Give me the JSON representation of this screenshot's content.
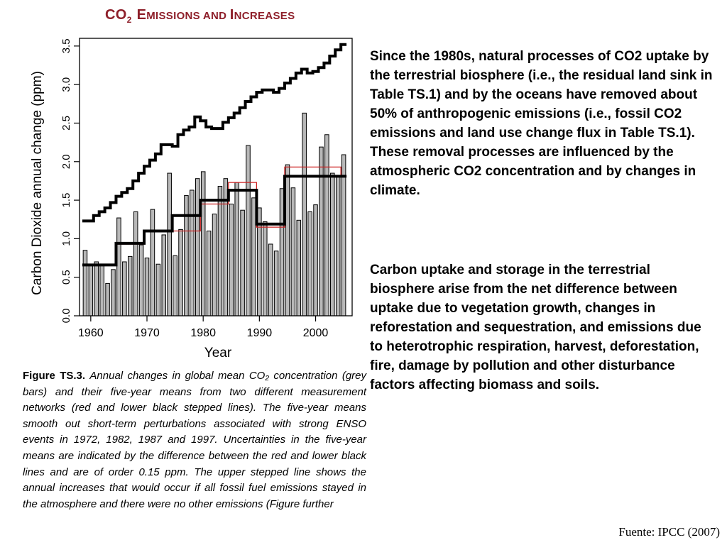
{
  "title": {
    "prefix": "CO",
    "sub": "2",
    "e_big": "E",
    "e_rest": "MISSIONS AND ",
    "i_big": "I",
    "i_rest": "NCREASES"
  },
  "chart_data": {
    "type": "bar",
    "title": "CO2 Emissions and Increases",
    "xlabel": "Year",
    "ylabel": "Carbon Dioxide annual change (ppm)",
    "xlim": [
      1958,
      2006.5
    ],
    "ylim": [
      0,
      3.6
    ],
    "xticks": [
      "1960",
      "1970",
      "1980",
      "1990",
      "2000"
    ],
    "yticks": [
      "0.0",
      "0.5",
      "1.0",
      "1.5",
      "2.0",
      "2.5",
      "3.0",
      "3.5"
    ],
    "bar_color": "#b8b8b8",
    "years": [
      1959,
      1960,
      1961,
      1962,
      1963,
      1964,
      1965,
      1966,
      1967,
      1968,
      1969,
      1970,
      1971,
      1972,
      1973,
      1974,
      1975,
      1976,
      1977,
      1978,
      1979,
      1980,
      1981,
      1982,
      1983,
      1984,
      1985,
      1986,
      1987,
      1988,
      1989,
      1990,
      1991,
      1992,
      1993,
      1994,
      1995,
      1996,
      1997,
      1998,
      1999,
      2000,
      2001,
      2002,
      2003,
      2004,
      2005
    ],
    "annual_change": [
      0.85,
      0.67,
      0.7,
      0.67,
      0.42,
      0.6,
      1.27,
      0.7,
      0.77,
      1.35,
      0.92,
      0.75,
      1.38,
      0.67,
      1.05,
      1.85,
      0.78,
      1.12,
      1.56,
      1.63,
      1.78,
      1.87,
      1.1,
      1.32,
      1.68,
      1.78,
      1.45,
      1.73,
      1.37,
      2.21,
      1.53,
      1.4,
      1.22,
      0.93,
      0.84,
      1.65,
      1.96,
      1.66,
      1.24,
      2.63,
      1.35,
      1.44,
      2.19,
      2.35,
      1.85,
      1.82,
      2.09
    ],
    "series": [
      {
        "name": "Fossil fuel emissions (upper stepped line)",
        "color": "#000000",
        "x": [
          1959,
          1960,
          1961,
          1962,
          1963,
          1964,
          1965,
          1966,
          1967,
          1968,
          1969,
          1970,
          1971,
          1972,
          1973,
          1974,
          1975,
          1976,
          1977,
          1978,
          1979,
          1980,
          1981,
          1982,
          1983,
          1984,
          1985,
          1986,
          1987,
          1988,
          1989,
          1990,
          1991,
          1992,
          1993,
          1994,
          1995,
          1996,
          1997,
          1998,
          1999,
          2000,
          2001,
          2002,
          2003,
          2004,
          2005
        ],
        "values": [
          1.23,
          1.23,
          1.3,
          1.35,
          1.4,
          1.47,
          1.55,
          1.6,
          1.65,
          1.75,
          1.85,
          1.94,
          2.02,
          2.1,
          2.22,
          2.22,
          2.2,
          2.35,
          2.41,
          2.45,
          2.58,
          2.53,
          2.45,
          2.43,
          2.43,
          2.51,
          2.57,
          2.63,
          2.7,
          2.78,
          2.84,
          2.9,
          2.93,
          2.93,
          2.9,
          2.95,
          3.02,
          3.08,
          3.15,
          3.2,
          3.15,
          3.17,
          3.22,
          3.28,
          3.37,
          3.45,
          3.52
        ]
      },
      {
        "name": "Five-year mean (lower black stepped line)",
        "color": "#000000",
        "x": [
          1959,
          1965,
          1970,
          1975,
          1980,
          1985,
          1990,
          1995,
          2005
        ],
        "values": [
          0.66,
          0.94,
          1.1,
          1.3,
          1.5,
          1.63,
          1.19,
          1.81,
          1.81
        ]
      },
      {
        "name": "Five-year mean (red stepped line)",
        "color": "#cc2222",
        "x": [
          1959,
          1965,
          1970,
          1975,
          1980,
          1985,
          1990,
          1995,
          2005
        ],
        "values": [
          0.66,
          0.93,
          1.1,
          1.1,
          1.45,
          1.73,
          1.15,
          1.93,
          1.81
        ]
      }
    ]
  },
  "caption": {
    "lead": "Figure TS.3.",
    "text": "Annual changes in global mean CO₂ concentration (grey bars) and their five-year means from two different measurement networks (red and lower black stepped lines). The five-year means smooth out short-term perturbations associated with strong ENSO events in 1972, 1982, 1987 and 1997. Uncertainties in the five-year means are indicated by the difference between the red and lower black lines and are of order 0.15 ppm. The upper stepped line shows the annual increases that would occur if all fossil fuel emissions stayed in the atmosphere and there were no other emissions (Figure further"
  },
  "side_text": {
    "para1": "Since the 1980s, natural processes of CO2 uptake by the terrestrial biosphere (i.e., the residual land sink in Table TS.1) and by the oceans have removed about 50% of anthropogenic emissions (i.e., fossil CO2 emissions and land use change flux in Table TS.1). These removal processes are influenced by the atmospheric CO2 concentration and by changes in climate.",
    "para2": "Carbon uptake and storage in the terrestrial biosphere arise from the net difference between uptake due to vegetation growth, changes in reforestation and sequestration, and emissions due to heterotrophic respiration, harvest, deforestation, fire, damage by pollution and other disturbance factors affecting biomass and soils."
  },
  "source": "Fuente: IPCC (2007)"
}
